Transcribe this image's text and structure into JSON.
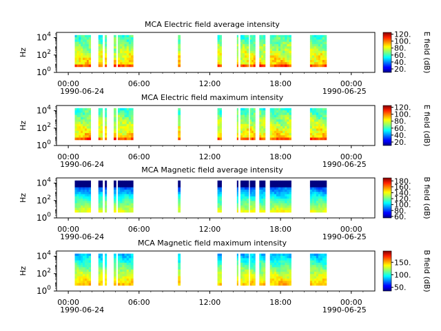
{
  "chart_data": [
    {
      "type": "heatmap",
      "title": "MCA  Electric field average intensity",
      "ylabel": "Hz",
      "y_scale": "log",
      "y_ticks": [
        {
          "base": "10",
          "exp": "0"
        },
        {
          "base": "10",
          "exp": "2"
        },
        {
          "base": "10",
          "exp": "4"
        }
      ],
      "x_ticks": [
        "00:00",
        "06:00",
        "12:00",
        "18:00",
        "00:00"
      ],
      "x_dates": [
        "1990-06-24",
        "1990-06-25"
      ],
      "colorbar": {
        "label": "E field (dB)",
        "ticks": [
          "20.",
          "40.",
          "60.",
          "80.",
          "100.",
          "120."
        ],
        "range": [
          10,
          125
        ],
        "scheme": "jet"
      },
      "segments_hours": [
        [
          0.55,
          1.9
        ],
        [
          2.55,
          2.9
        ],
        [
          3.1,
          3.25
        ],
        [
          3.85,
          4.05
        ],
        [
          4.2,
          5.5
        ],
        [
          9.3,
          9.5
        ],
        [
          12.65,
          13.0
        ],
        [
          14.3,
          14.4
        ],
        [
          14.6,
          15.3
        ],
        [
          15.4,
          15.85
        ],
        [
          16.2,
          16.7
        ],
        [
          17.1,
          18.9
        ],
        [
          20.5,
          21.9
        ]
      ],
      "profile": "electric"
    },
    {
      "type": "heatmap",
      "title": "MCA  Electric field maximum intensity",
      "ylabel": "Hz",
      "y_scale": "log",
      "y_ticks": [
        {
          "base": "10",
          "exp": "0"
        },
        {
          "base": "10",
          "exp": "2"
        },
        {
          "base": "10",
          "exp": "4"
        }
      ],
      "x_ticks": [
        "00:00",
        "06:00",
        "12:00",
        "18:00",
        "00:00"
      ],
      "x_dates": [
        "1990-06-24",
        "1990-06-25"
      ],
      "colorbar": {
        "label": "E field (dB)",
        "ticks": [
          "20.",
          "40.",
          "60.",
          "80.",
          "100.",
          "120."
        ],
        "range": [
          10,
          125
        ],
        "scheme": "jet"
      },
      "segments_hours": [
        [
          0.55,
          1.9
        ],
        [
          2.55,
          2.9
        ],
        [
          3.1,
          3.25
        ],
        [
          3.85,
          4.05
        ],
        [
          4.2,
          5.5
        ],
        [
          9.3,
          9.5
        ],
        [
          12.65,
          13.0
        ],
        [
          14.3,
          14.4
        ],
        [
          14.6,
          15.3
        ],
        [
          15.4,
          15.85
        ],
        [
          16.2,
          16.7
        ],
        [
          17.1,
          18.9
        ],
        [
          20.5,
          21.9
        ]
      ],
      "profile": "electric"
    },
    {
      "type": "heatmap",
      "title": "MCA  Magnetic field average intensity",
      "ylabel": "Hz",
      "y_scale": "log",
      "y_ticks": [
        {
          "base": "10",
          "exp": "0"
        },
        {
          "base": "10",
          "exp": "2"
        },
        {
          "base": "10",
          "exp": "4"
        }
      ],
      "x_ticks": [
        "00:00",
        "06:00",
        "12:00",
        "18:00",
        "00:00"
      ],
      "x_dates": [
        "1990-06-24",
        "1990-06-25"
      ],
      "colorbar": {
        "label": "B field (dB)",
        "ticks": [
          "60.",
          "80.",
          "100.",
          "120.",
          "140.",
          "160.",
          "180."
        ],
        "range": [
          55,
          190
        ],
        "scheme": "jet"
      },
      "segments_hours": [
        [
          0.55,
          1.9
        ],
        [
          2.55,
          2.9
        ],
        [
          3.1,
          3.25
        ],
        [
          3.85,
          4.05
        ],
        [
          4.2,
          5.5
        ],
        [
          9.3,
          9.5
        ],
        [
          12.65,
          13.0
        ],
        [
          14.3,
          14.4
        ],
        [
          14.6,
          15.3
        ],
        [
          15.4,
          15.85
        ],
        [
          16.2,
          16.7
        ],
        [
          17.1,
          18.9
        ],
        [
          20.5,
          21.9
        ]
      ],
      "profile": "magnetic"
    },
    {
      "type": "heatmap",
      "title": "MCA  Magnetic field maximum intensity",
      "ylabel": "Hz",
      "y_scale": "log",
      "y_ticks": [
        {
          "base": "10",
          "exp": "0"
        },
        {
          "base": "10",
          "exp": "2"
        },
        {
          "base": "10",
          "exp": "4"
        }
      ],
      "x_ticks": [
        "00:00",
        "06:00",
        "12:00",
        "18:00",
        "00:00"
      ],
      "x_dates": [
        "1990-06-24",
        "1990-06-25"
      ],
      "colorbar": {
        "label": "B field (dB)",
        "ticks": [
          "50.",
          "100.",
          "150."
        ],
        "range": [
          35,
          195
        ],
        "scheme": "jet"
      },
      "segments_hours": [
        [
          0.55,
          1.9
        ],
        [
          2.55,
          2.9
        ],
        [
          3.1,
          3.25
        ],
        [
          3.85,
          4.05
        ],
        [
          4.2,
          5.5
        ],
        [
          9.3,
          9.5
        ],
        [
          12.65,
          13.0
        ],
        [
          14.3,
          14.4
        ],
        [
          14.6,
          15.3
        ],
        [
          15.4,
          15.85
        ],
        [
          16.2,
          16.7
        ],
        [
          17.1,
          18.9
        ],
        [
          20.5,
          21.9
        ]
      ],
      "profile": "magnetic_max"
    }
  ]
}
